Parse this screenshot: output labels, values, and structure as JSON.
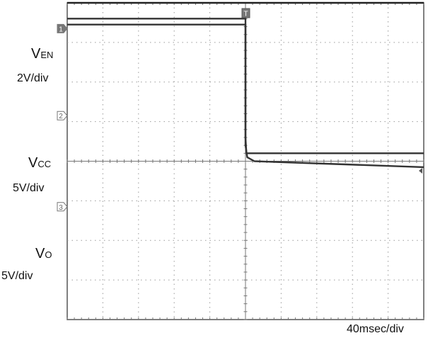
{
  "chart_data": {
    "type": "line",
    "title": "",
    "xlabel": "",
    "ylabel": "",
    "timebase": "40msec/div",
    "grid": true,
    "x_divisions": 10,
    "y_divisions": 8,
    "xlim": [
      -200,
      200
    ],
    "trigger_marker": "T",
    "x_units": "msec",
    "channels": [
      {
        "name_main": "V",
        "name_sub": "EN",
        "scale": "2V/div",
        "marker": "1",
        "ground_div": 3.35,
        "color": "#222222",
        "points": [
          [
            -200,
            4.0
          ],
          [
            200,
            4.0
          ]
        ]
      },
      {
        "name_main": "V",
        "name_sub": "CC",
        "scale": "5V/div",
        "marker": "2",
        "ground_div": 1.15,
        "color": "#333333",
        "points": [
          [
            -200,
            3.6
          ],
          [
            0,
            3.6
          ],
          [
            0,
            0.6
          ],
          [
            1,
            0.2
          ],
          [
            200,
            0.2
          ]
        ]
      },
      {
        "name_main": "V",
        "name_sub": "O",
        "scale": "5V/div",
        "marker": "3",
        "ground_div": -1.15,
        "color": "#333333",
        "points": [
          [
            -200,
            3.45
          ],
          [
            0,
            3.45
          ],
          [
            0,
            0.4
          ],
          [
            2,
            0.1
          ],
          [
            10,
            0.0
          ],
          [
            200,
            -0.15
          ]
        ]
      }
    ]
  }
}
